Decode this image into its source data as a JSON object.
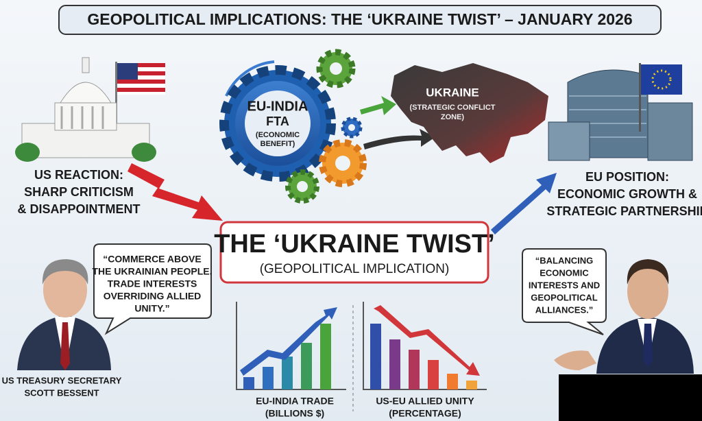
{
  "header": {
    "title": "GEOPOLITICAL IMPLICATIONS: THE ‘UKRAINE TWIST’ – JANUARY 2026"
  },
  "us_reaction": {
    "lines": [
      "US REACTION:",
      "SHARP CRITICISM",
      "& DISAPPOINTMENT"
    ]
  },
  "gear": {
    "lines": [
      "EU-INDIA",
      "FTA",
      "(ECONOMIC",
      "BENEFIT)"
    ]
  },
  "ukraine": {
    "lines": [
      "UKRAINE",
      "(STRATEGIC CONFLICT",
      "ZONE)"
    ]
  },
  "eu_position": {
    "lines": [
      "EU POSITION:",
      "ECONOMIC GROWTH &",
      "STRATEGIC PARTNERSHIP"
    ]
  },
  "center": {
    "title": "THE ‘UKRAINE TWIST’",
    "subtitle": "(GEOPOLITICAL IMPLICATION)"
  },
  "quote_left": {
    "lines": [
      "“COMMERCE ABOVE",
      "THE UKRAINIAN PEOPLE.",
      "TRADE INTERESTS",
      "OVERRIDING ALLIED",
      "UNITY.”"
    ]
  },
  "quote_right": {
    "lines": [
      "“BALANCING",
      "ECONOMIC",
      "INTERESTS AND",
      "GEOPOLITICAL",
      "ALLIANCES.”"
    ]
  },
  "person_left": {
    "lines": [
      "US TREASURY SECRETARY",
      "SCOTT BESSENT"
    ]
  },
  "chart_left": {
    "lines": [
      "EU-INDIA TRADE",
      "(BILLIONS $)"
    ]
  },
  "chart_right": {
    "lines": [
      "US-EU ALLIED UNITY",
      "(PERCENTAGE)"
    ]
  }
}
